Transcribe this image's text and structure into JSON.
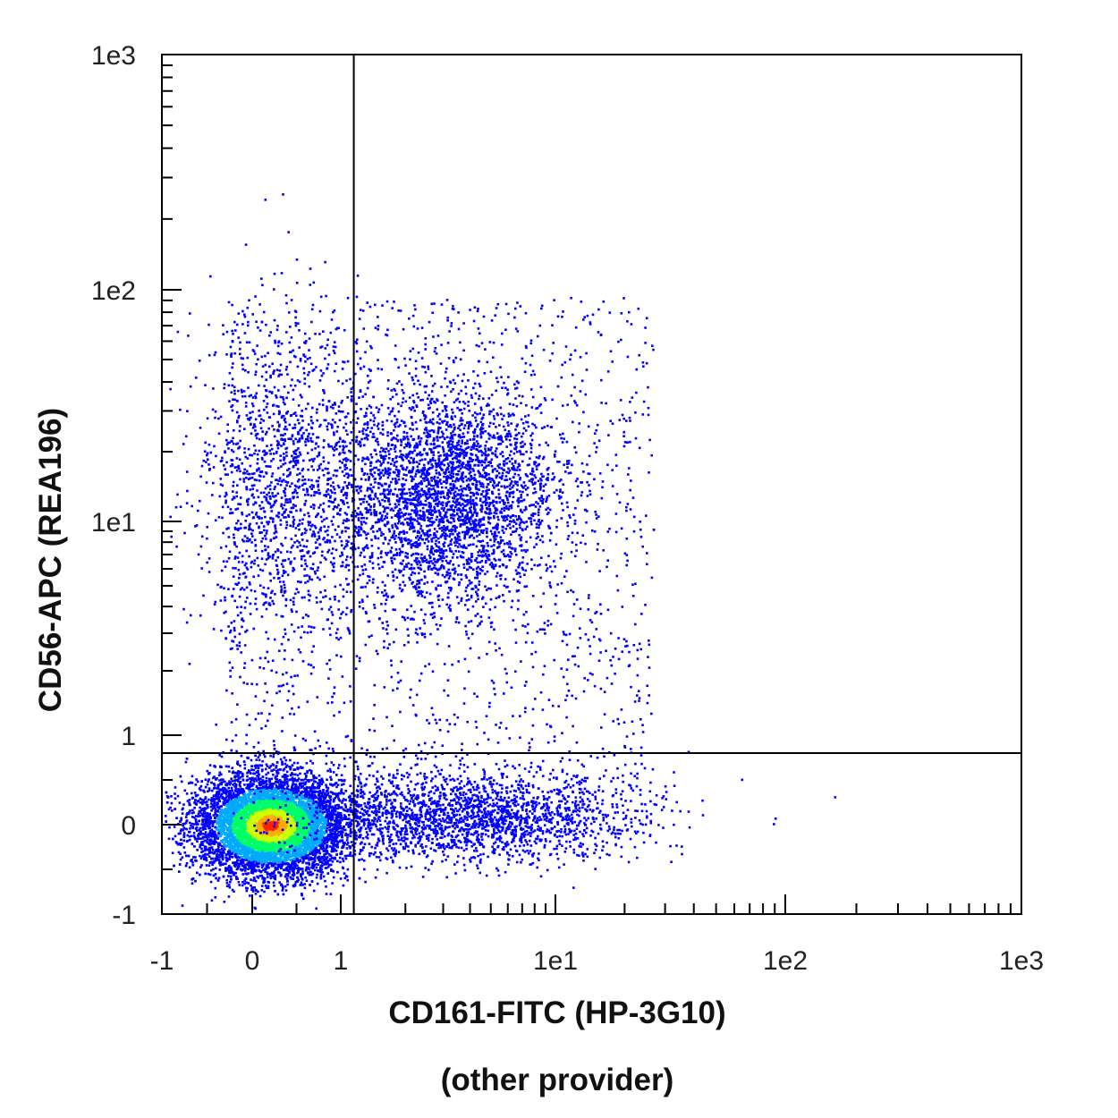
{
  "chart_data": {
    "type": "scatter",
    "subtype": "flow-cytometry-density-dot-plot",
    "x_axis": {
      "label": "CD161-FITC (HP-3G10)",
      "sublabel": "(other provider)",
      "scale": "biexponential",
      "range": [
        -1,
        1000
      ],
      "ticks": [
        {
          "value": -1,
          "label": "-1"
        },
        {
          "value": 0,
          "label": "0"
        },
        {
          "value": 1,
          "label": "1"
        },
        {
          "value": 10,
          "label": "1e1"
        },
        {
          "value": 100,
          "label": "1e2"
        },
        {
          "value": 1000,
          "label": "1e3"
        }
      ]
    },
    "y_axis": {
      "label": "CD56-APC (REA196)",
      "scale": "biexponential",
      "range": [
        -1,
        1000
      ],
      "ticks": [
        {
          "value": -1,
          "label": "-1"
        },
        {
          "value": 0,
          "label": "0"
        },
        {
          "value": 1,
          "label": "1"
        },
        {
          "value": 10,
          "label": "1e1"
        },
        {
          "value": 100,
          "label": "1e2"
        },
        {
          "value": 1000,
          "label": "1e3"
        }
      ]
    },
    "quadrant_gates": {
      "x": 1.15,
      "y": 0.8
    },
    "populations": [
      {
        "id": "double-negative",
        "x_center": 0.2,
        "y_center": 0.0,
        "relative_density": 1.0
      },
      {
        "id": "CD161-neg-CD56-pos",
        "x_center": 0.3,
        "y_center": 15,
        "relative_density": 0.12
      },
      {
        "id": "CD161-pos-CD56-pos",
        "x_center": 3.0,
        "y_center": 13,
        "relative_density": 0.3
      },
      {
        "id": "CD161-pos-CD56-neg",
        "x_center": 4.0,
        "y_center": 0.1,
        "relative_density": 0.2
      }
    ],
    "density_colors": [
      "#0000ff",
      "#00aaff",
      "#00ff66",
      "#ccff00",
      "#ffaa00",
      "#ff2200"
    ],
    "grid": false,
    "legend": "none"
  }
}
